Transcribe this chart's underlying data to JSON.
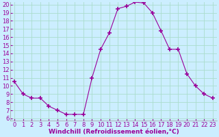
{
  "x": [
    0,
    1,
    2,
    3,
    4,
    5,
    6,
    7,
    8,
    9,
    10,
    11,
    12,
    13,
    14,
    15,
    16,
    17,
    18,
    19,
    20,
    21,
    22,
    23
  ],
  "y": [
    10.5,
    9.0,
    8.5,
    8.5,
    7.5,
    7.0,
    6.5,
    6.5,
    6.5,
    11.0,
    14.5,
    16.5,
    19.5,
    19.8,
    20.3,
    20.2,
    19.0,
    16.8,
    14.5,
    14.5,
    11.5,
    10.0,
    9.0,
    8.5
  ],
  "line_color": "#990099",
  "marker": "+",
  "marker_size": 4,
  "bg_color": "#cceeff",
  "grid_color": "#aaddcc",
  "xlabel": "Windchill (Refroidissement éolien,°C)",
  "xlabel_color": "#990099",
  "tick_color": "#990099",
  "ylim": [
    6,
    20
  ],
  "xlim": [
    -0.5,
    23.5
  ],
  "yticks": [
    6,
    7,
    8,
    9,
    10,
    11,
    12,
    13,
    14,
    15,
    16,
    17,
    18,
    19,
    20
  ],
  "xticks": [
    0,
    1,
    2,
    3,
    4,
    5,
    6,
    7,
    8,
    9,
    10,
    11,
    12,
    13,
    14,
    15,
    16,
    17,
    18,
    19,
    20,
    21,
    22,
    23
  ],
  "fontsize_axis": 6.0,
  "fontsize_label": 6.5
}
